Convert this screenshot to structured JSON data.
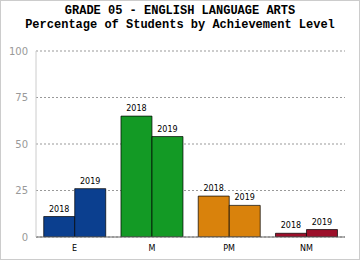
{
  "chart_data": {
    "type": "bar",
    "title": "GRADE 05 - ENGLISH LANGUAGE ARTS",
    "subtitle": "Percentage of Students by Achievement Level",
    "categories": [
      "E",
      "M",
      "PM",
      "NM"
    ],
    "series": [
      {
        "name": "2018",
        "colors": [
          "#0b3f8f",
          "#139a25",
          "#d9820c",
          "#9c0f2a"
        ],
        "values": [
          11,
          65,
          22,
          2
        ]
      },
      {
        "name": "2019",
        "colors": [
          "#0b3f8f",
          "#139a25",
          "#d9820c",
          "#9c0f2a"
        ],
        "values": [
          26,
          54,
          17,
          4
        ]
      }
    ],
    "ylim": [
      0,
      100
    ],
    "yticks": [
      0,
      25,
      50,
      75,
      100
    ],
    "grid": true
  }
}
